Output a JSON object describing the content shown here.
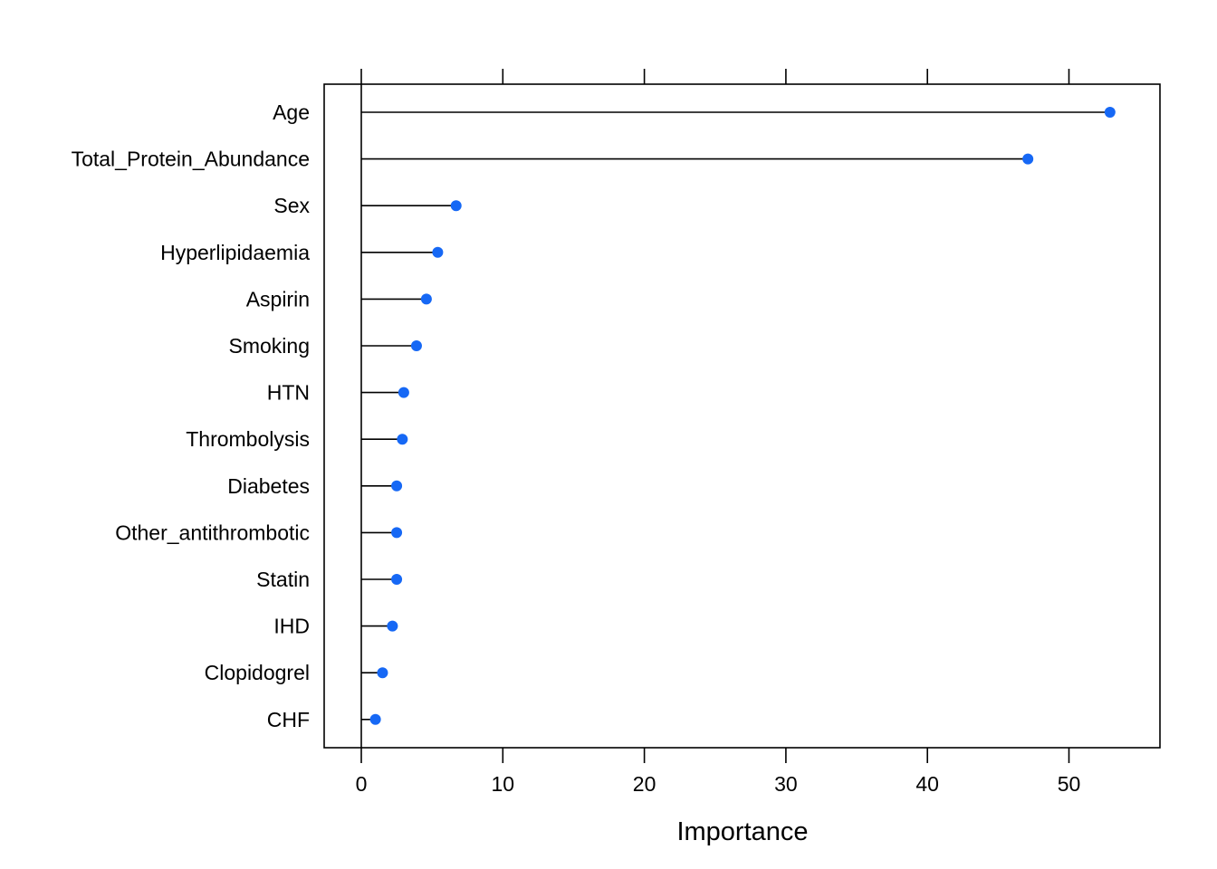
{
  "chart_data": {
    "type": "scatter",
    "variant": "lollipop-dotplot",
    "title": "",
    "xlabel": "Importance",
    "ylabel": "",
    "xlim": [
      -2.6,
      56.5
    ],
    "xticks": [
      0,
      10,
      20,
      30,
      40,
      50
    ],
    "categories": [
      "Age",
      "Total_Protein_Abundance",
      "Sex",
      "Hyperlipidaemia",
      "Aspirin",
      "Smoking",
      "HTN",
      "Thrombolysis",
      "Diabetes",
      "Other_antithrombotic",
      "Statin",
      "IHD",
      "Clopidogrel",
      "CHF"
    ],
    "values": [
      52.9,
      47.1,
      6.7,
      5.4,
      4.6,
      3.9,
      3.0,
      2.9,
      2.5,
      2.5,
      2.5,
      2.2,
      1.5,
      1.0
    ],
    "point_color": "#1668f5",
    "line_color": "#000000",
    "grid": false,
    "legend": "none"
  }
}
